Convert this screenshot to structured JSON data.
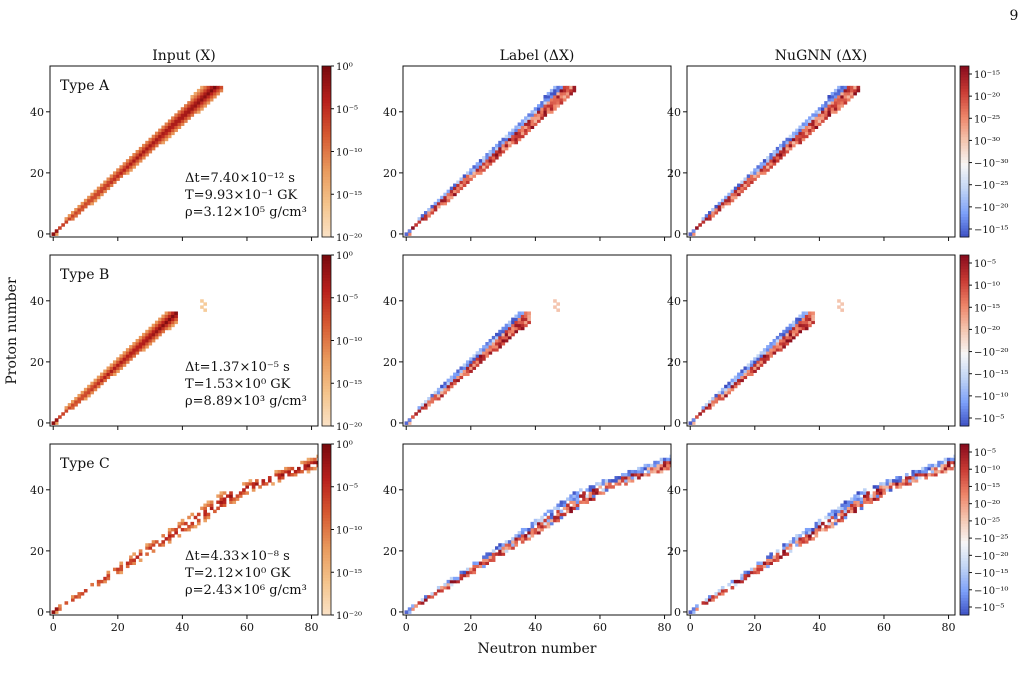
{
  "page_number": "9",
  "chart_data": {
    "type": "heatmap",
    "column_titles": [
      "Input (X)",
      "Label (ΔX)",
      "NuGNN (ΔX)"
    ],
    "xlabel": "Neutron number",
    "ylabel": "Proton number",
    "x_ticks": [
      0,
      20,
      40,
      60,
      80
    ],
    "y_ticks": [
      0,
      20,
      40
    ],
    "xlim": [
      -1,
      82
    ],
    "ylim": [
      -1,
      55
    ],
    "rows": [
      {
        "label": "Type A",
        "annotation": {
          "dt": "Δt=7.40×10⁻¹² s",
          "T": "T=9.93×10⁻¹ GK",
          "rho": "ρ=3.12×10⁵ g/cm³"
        },
        "input_colorbar_ticks": [
          "10⁰",
          "10⁻⁵",
          "10⁻¹⁰",
          "10⁻¹⁵",
          "10⁻²⁰"
        ],
        "delta_colorbar_ticks": [
          "10⁻¹⁵",
          "10⁻²⁰",
          "10⁻²⁵",
          "10⁻³⁰",
          "−10⁻³⁰",
          "−10⁻²⁵",
          "−10⁻²⁰",
          "−10⁻¹⁵"
        ],
        "band": {
          "z_min": 0,
          "z_max": 48,
          "n_max": 52,
          "ratio": 1.04,
          "low_width": 1,
          "high_width": 7,
          "sparsity": 0.0,
          "tail": null
        }
      },
      {
        "label": "Type B",
        "annotation": {
          "dt": "Δt=1.37×10⁻⁵ s",
          "T": "T=1.53×10⁰ GK",
          "rho": "ρ=8.89×10³ g/cm³"
        },
        "input_colorbar_ticks": [
          "10⁰",
          "10⁻⁵",
          "10⁻¹⁰",
          "10⁻¹⁵",
          "10⁻²⁰"
        ],
        "delta_colorbar_ticks": [
          "10⁻⁵",
          "10⁻¹⁰",
          "10⁻¹⁵",
          "10⁻²⁰",
          "−10⁻²⁰",
          "−10⁻¹⁵",
          "−10⁻¹⁰",
          "−10⁻⁵"
        ],
        "band": {
          "z_min": 0,
          "z_max": 36,
          "n_max": 38,
          "ratio": 1.06,
          "low_width": 1,
          "high_width": 6,
          "sparsity": 0.0,
          "tail": {
            "n": 46,
            "z": 40,
            "count": 4
          }
        }
      },
      {
        "label": "Type C",
        "annotation": {
          "dt": "Δt=4.33×10⁻⁸ s",
          "T": "T=2.12×10⁰ GK",
          "rho": "ρ=2.43×10⁶ g/cm³"
        },
        "input_colorbar_ticks": [
          "10⁰",
          "10⁻⁵",
          "10⁻¹⁰",
          "10⁻¹⁵",
          "10⁻²⁰"
        ],
        "delta_colorbar_ticks": [
          "10⁻⁵",
          "10⁻¹⁰",
          "10⁻¹⁵",
          "10⁻²⁰",
          "10⁻²⁵",
          "−10⁻²⁵",
          "−10⁻²⁰",
          "−10⁻¹⁵",
          "−10⁻¹⁰",
          "−10⁻⁵"
        ],
        "band": {
          "z_min": 0,
          "z_max": 54,
          "n_max": 82,
          "ratio": 1.45,
          "low_width": 1,
          "high_width": 11,
          "sparsity": 0.45,
          "tail": null
        }
      }
    ],
    "colormaps": {
      "input": [
        "#fbe3c8",
        "#f4c48c",
        "#e9995c",
        "#d65a32",
        "#b8201c",
        "#7a0a0e"
      ],
      "delta": [
        "#3a4cc0",
        "#7b9ff9",
        "#c0d4f5",
        "#f7f7f7",
        "#f4c6b0",
        "#ee8468",
        "#c93b34",
        "#8a0d1e"
      ]
    }
  }
}
